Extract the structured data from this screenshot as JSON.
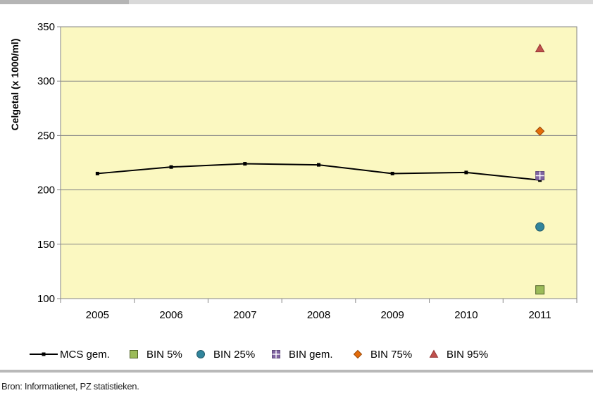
{
  "chart_data": {
    "type": "line",
    "ylabel": "Celgetal (x 1000/ml)",
    "xlabel": "",
    "categories": [
      "2005",
      "2006",
      "2007",
      "2008",
      "2009",
      "2010",
      "2011"
    ],
    "ylim": [
      100,
      350
    ],
    "yticks": [
      100,
      150,
      200,
      250,
      300,
      350
    ],
    "grid": "horizontal",
    "plot_background": "#fbf8c1",
    "legend_position": "bottom",
    "series": [
      {
        "name": "MCS gem.",
        "kind": "line",
        "marker": "square-small",
        "color": "#000000",
        "x": [
          "2005",
          "2006",
          "2007",
          "2008",
          "2009",
          "2010",
          "2011"
        ],
        "values": [
          215,
          221,
          224,
          223,
          215,
          216,
          209
        ]
      },
      {
        "name": "BIN 5%",
        "kind": "point",
        "marker": "square",
        "color": "#9bbb59",
        "edge": "#4f6228",
        "x": [
          "2011"
        ],
        "values": [
          108
        ]
      },
      {
        "name": "BIN 25%",
        "kind": "point",
        "marker": "circle",
        "color": "#31859c",
        "edge": "#215968",
        "x": [
          "2011"
        ],
        "values": [
          166
        ]
      },
      {
        "name": "BIN gem.",
        "kind": "point",
        "marker": "plus",
        "color": "#8064a2",
        "edge": "#5f497a",
        "x": [
          "2011"
        ],
        "values": [
          213
        ]
      },
      {
        "name": "BIN 75%",
        "kind": "point",
        "marker": "diamond",
        "color": "#e46c0a",
        "edge": "#984807",
        "x": [
          "2011"
        ],
        "values": [
          254
        ]
      },
      {
        "name": "BIN 95%",
        "kind": "point",
        "marker": "triangle",
        "color": "#c0504d",
        "edge": "#953735",
        "x": [
          "2011"
        ],
        "values": [
          330
        ]
      }
    ]
  },
  "footer": {
    "source": "Bron: Informatienet, PZ statistieken."
  }
}
